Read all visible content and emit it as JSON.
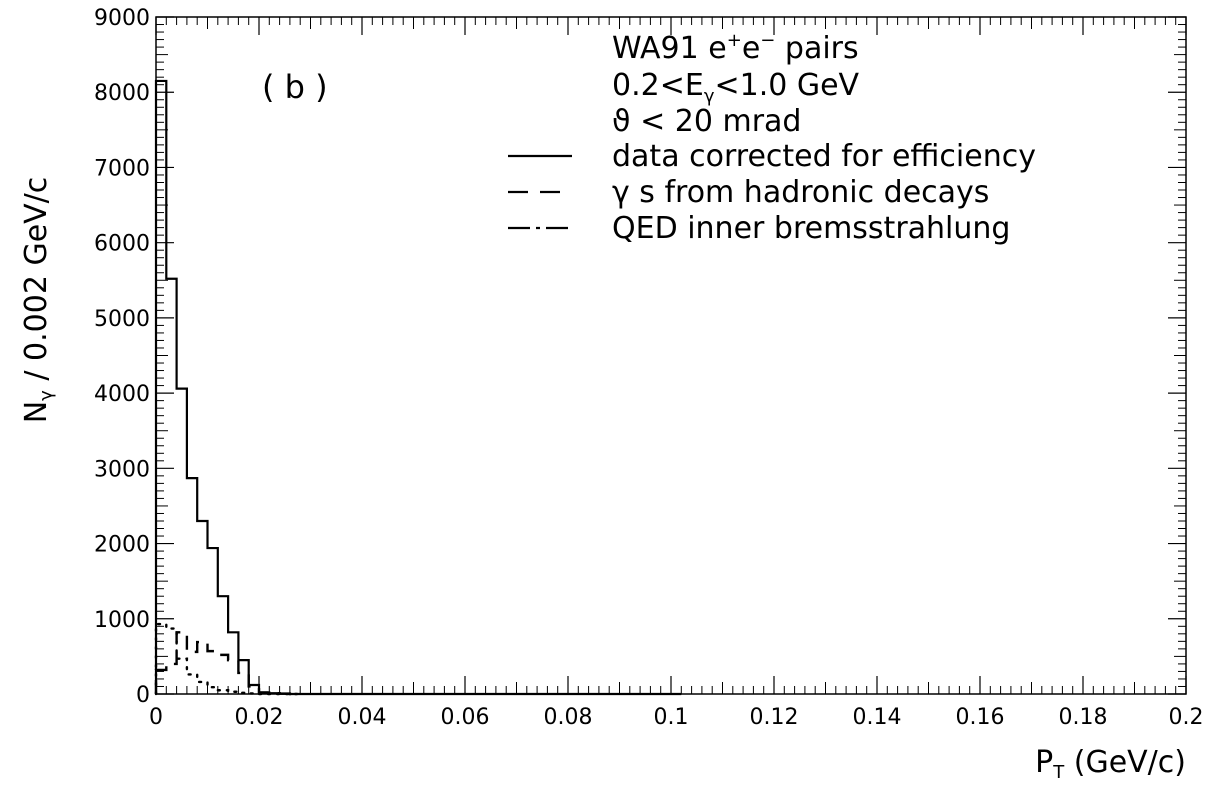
{
  "chart_data": {
    "type": "line",
    "panel_label": "( b )",
    "x_axis": {
      "ticks": [
        0,
        0.02,
        0.04,
        0.06,
        0.08,
        0.1,
        0.12,
        0.14,
        0.16,
        0.18,
        0.2
      ],
      "tick_labels": [
        "0",
        "0.02",
        "0.04",
        "0.06",
        "0.08",
        "0.1",
        "0.12",
        "0.14",
        "0.16",
        "0.18",
        "0.2"
      ],
      "range": [
        0,
        0.2
      ],
      "label_main": "P",
      "label_sub": "T",
      "label_rest": " (GeV/c)"
    },
    "y_axis": {
      "ticks": [
        0,
        1000,
        2000,
        3000,
        4000,
        5000,
        6000,
        7000,
        8000,
        9000
      ],
      "tick_labels": [
        "0",
        "1000",
        "2000",
        "3000",
        "4000",
        "5000",
        "6000",
        "7000",
        "8000",
        "9000"
      ],
      "range": [
        0,
        9000
      ],
      "label_main": "N",
      "label_sub": "γ",
      "label_rest": " / 0.002 GeV/c"
    },
    "legend_header": {
      "line1_a": "WA91  e",
      "line1_sup1": "+",
      "line1_b": "e",
      "line1_sup2": "−",
      "line1_c": "  pairs",
      "line2_a": "0.2<E",
      "line2_sub": "γ",
      "line2_b": "<1.0 GeV",
      "line3": "ϑ < 20 mrad"
    },
    "bin_width": 0.002,
    "series": [
      {
        "name": "data corrected for efficiency",
        "style": "solid",
        "bin_edges_start": 0,
        "values": [
          8150,
          5520,
          4060,
          2870,
          2300,
          1940,
          1300,
          820,
          450,
          120,
          20,
          10,
          5,
          0,
          0,
          0,
          0,
          0,
          0,
          0,
          0,
          0,
          0,
          0,
          0,
          0,
          0,
          0,
          0,
          0,
          0,
          0,
          0,
          0,
          0,
          0,
          0,
          0,
          0,
          0,
          0,
          0,
          0,
          0,
          0,
          0,
          0,
          0,
          0,
          0,
          0
        ]
      },
      {
        "name": "γ s from hadronic decays",
        "style": "dashed",
        "bin_edges_start": 0,
        "values": [
          320,
          400,
          820,
          560,
          690,
          570,
          520,
          450,
          280,
          100,
          20,
          10,
          5,
          0
        ]
      },
      {
        "name": "QED inner bremsstrahlung",
        "style": "dashdot",
        "bin_edges_start": 0,
        "values": [
          930,
          870,
          470,
          260,
          160,
          90,
          50,
          30,
          15,
          8,
          0,
          0,
          0,
          0
        ]
      }
    ]
  }
}
